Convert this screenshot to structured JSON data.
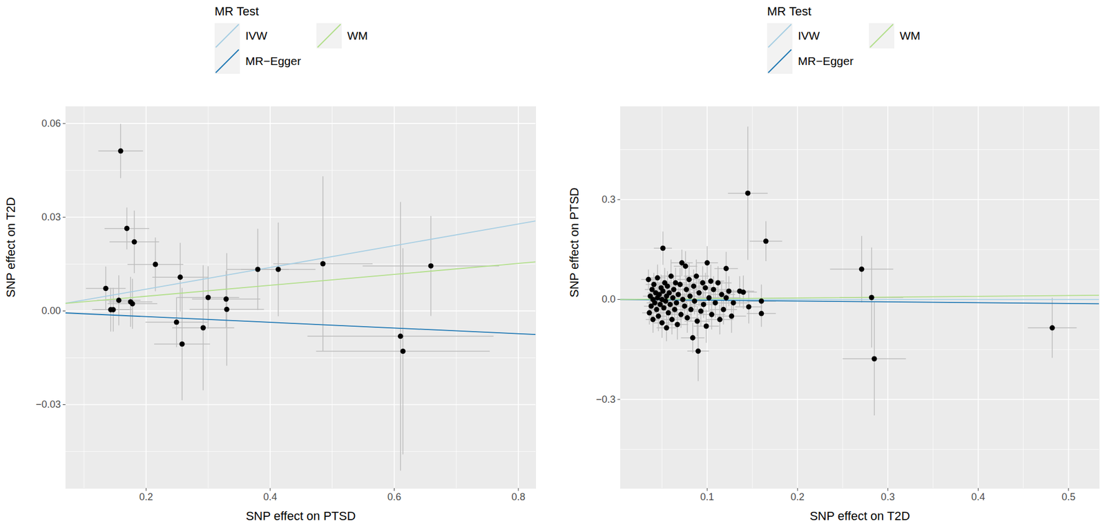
{
  "chart_data": [
    {
      "type": "scatter",
      "x_label": "SNP effect on PTSD",
      "y_label": "SNP effect on T2D",
      "legend_title": "MR Test",
      "legend": "top",
      "grid": true,
      "xlim": [
        0.0705,
        0.828
      ],
      "xticks": [
        0.2,
        0.4,
        0.6,
        0.8
      ],
      "ylim": [
        -0.0568,
        0.0654
      ],
      "yticks": [
        {
          "value": -0.03,
          "label": "−0.03"
        },
        {
          "value": 0,
          "label": "0.00"
        },
        {
          "value": 0.03,
          "label": "0.03"
        },
        {
          "value": 0.06,
          "label": "0.06"
        }
      ],
      "points": {
        "color": "black",
        "x": [
          0.159,
          0.169,
          0.181,
          0.215,
          0.135,
          0.143,
          0.147,
          0.156,
          0.175,
          0.178,
          0.255,
          0.249,
          0.258,
          0.292,
          0.3,
          0.329,
          0.33,
          0.38,
          0.413,
          0.485,
          0.61,
          0.614,
          0.659
        ],
        "y": [
          0.0512,
          0.0264,
          0.0221,
          0.0149,
          0.0072,
          0.0004,
          0.0004,
          0.0034,
          0.0029,
          0.0023,
          0.0108,
          -0.0036,
          -0.0106,
          -0.0054,
          0.0043,
          0.0038,
          0.0005,
          0.0133,
          0.0133,
          0.0151,
          -0.0081,
          -0.0129,
          0.0144
        ],
        "x_err": [
          0.036,
          0.036,
          0.04,
          0.045,
          0.032,
          0.03,
          0.03,
          0.035,
          0.035,
          0.04,
          0.045,
          0.05,
          0.045,
          0.05,
          0.05,
          0.055,
          0.06,
          0.05,
          0.06,
          0.08,
          0.15,
          0.14,
          0.11
        ],
        "y_err": [
          0.0087,
          0.0067,
          0.01,
          0.0086,
          0.007,
          0.007,
          0.007,
          0.008,
          0.008,
          0.008,
          0.011,
          0.008,
          0.018,
          0.02,
          0.01,
          0.009,
          0.018,
          0.013,
          0.015,
          0.028,
          0.043,
          0.033,
          0.016
        ]
      },
      "series": [
        {
          "name": "IVW",
          "color": "#a6cee3",
          "type": "line",
          "intercept": 0,
          "slope": 0.0348
        },
        {
          "name": "MR−Egger",
          "color": "#1f78b4",
          "type": "line",
          "intercept": 0,
          "slope": -0.0091
        },
        {
          "name": "WM",
          "color": "#b2df8a",
          "type": "line",
          "intercept": 0.0012,
          "slope": 0.0175
        }
      ]
    },
    {
      "type": "scatter",
      "x_label": "SNP effect on T2D",
      "y_label": "SNP effect on PTSD",
      "legend_title": "MR Test",
      "legend": "top",
      "grid": true,
      "xlim": [
        0.004,
        0.534
      ],
      "xticks": [
        0.1,
        0.2,
        0.3,
        0.4,
        0.5
      ],
      "ylim": [
        -0.567,
        0.579
      ],
      "yticks": [
        {
          "value": -0.3,
          "label": "−0.3"
        },
        {
          "value": 0,
          "label": "0.0"
        },
        {
          "value": 0.3,
          "label": "0.3"
        }
      ],
      "points": {
        "color": "black",
        "x": [
          0.035,
          0.036,
          0.037,
          0.038,
          0.039,
          0.04,
          0.04,
          0.041,
          0.042,
          0.043,
          0.044,
          0.045,
          0.045,
          0.046,
          0.047,
          0.048,
          0.049,
          0.05,
          0.05,
          0.051,
          0.052,
          0.053,
          0.054,
          0.055,
          0.055,
          0.056,
          0.057,
          0.058,
          0.059,
          0.06,
          0.061,
          0.062,
          0.063,
          0.064,
          0.065,
          0.066,
          0.067,
          0.068,
          0.07,
          0.071,
          0.072,
          0.073,
          0.075,
          0.076,
          0.077,
          0.078,
          0.08,
          0.081,
          0.082,
          0.084,
          0.085,
          0.086,
          0.088,
          0.089,
          0.091,
          0.093,
          0.095,
          0.096,
          0.098,
          0.099,
          0.102,
          0.104,
          0.105,
          0.107,
          0.109,
          0.112,
          0.114,
          0.116,
          0.118,
          0.121,
          0.124,
          0.127,
          0.129,
          0.136,
          0.051,
          0.1,
          0.121,
          0.09,
          0.145,
          0.165,
          0.14,
          0.146,
          0.16,
          0.16,
          0.271,
          0.282,
          0.285,
          0.482
        ],
        "y": [
          0.06,
          -0.04,
          0.01,
          -0.02,
          0.03,
          0.0,
          -0.06,
          0.045,
          -0.01,
          0.02,
          -0.03,
          0.065,
          0.005,
          -0.05,
          0.015,
          -0.015,
          0.035,
          -0.07,
          0.0,
          0.025,
          -0.025,
          0.05,
          -0.005,
          -0.085,
          0.01,
          0.04,
          -0.04,
          0.02,
          -0.015,
          0.07,
          -0.06,
          0.005,
          0.03,
          -0.03,
          0.05,
          -0.01,
          -0.075,
          0.015,
          0.045,
          -0.045,
          0.11,
          0.0,
          -0.02,
          0.1,
          0.03,
          -0.055,
          0.06,
          0.01,
          -0.03,
          -0.115,
          0.04,
          -0.005,
          0.07,
          -0.065,
          0.02,
          -0.035,
          0.05,
          -0.015,
          0.035,
          -0.08,
          0.005,
          0.055,
          -0.045,
          0.03,
          -0.01,
          0.05,
          -0.06,
          0.015,
          -0.03,
          0.005,
          0.025,
          -0.05,
          -0.01,
          0.025,
          0.154,
          0.11,
          0.093,
          -0.155,
          0.319,
          0.175,
          0.022,
          -0.022,
          -0.005,
          -0.042,
          0.091,
          0.006,
          -0.178,
          -0.085
        ],
        "x_err": [
          0.008,
          0.008,
          0.008,
          0.008,
          0.008,
          0.008,
          0.008,
          0.009,
          0.009,
          0.009,
          0.009,
          0.009,
          0.009,
          0.009,
          0.009,
          0.01,
          0.01,
          0.01,
          0.01,
          0.01,
          0.01,
          0.01,
          0.01,
          0.011,
          0.011,
          0.011,
          0.011,
          0.011,
          0.011,
          0.011,
          0.011,
          0.011,
          0.012,
          0.012,
          0.012,
          0.012,
          0.012,
          0.012,
          0.012,
          0.012,
          0.012,
          0.012,
          0.013,
          0.013,
          0.013,
          0.013,
          0.013,
          0.013,
          0.013,
          0.013,
          0.013,
          0.013,
          0.014,
          0.014,
          0.014,
          0.014,
          0.014,
          0.014,
          0.014,
          0.014,
          0.014,
          0.015,
          0.015,
          0.015,
          0.015,
          0.015,
          0.015,
          0.015,
          0.015,
          0.016,
          0.016,
          0.016,
          0.016,
          0.016,
          0.01,
          0.012,
          0.013,
          0.012,
          0.022,
          0.018,
          0.015,
          0.015,
          0.016,
          0.016,
          0.035,
          0.035,
          0.035,
          0.027
        ],
        "y_err": [
          0.03,
          0.035,
          0.03,
          0.04,
          0.035,
          0.03,
          0.04,
          0.035,
          0.03,
          0.04,
          0.035,
          0.04,
          0.03,
          0.045,
          0.035,
          0.03,
          0.04,
          0.045,
          0.03,
          0.035,
          0.04,
          0.045,
          0.03,
          0.04,
          0.035,
          0.045,
          0.04,
          0.035,
          0.03,
          0.05,
          0.045,
          0.035,
          0.04,
          0.035,
          0.045,
          0.03,
          0.045,
          0.035,
          0.05,
          0.04,
          0.04,
          0.035,
          0.04,
          0.045,
          0.04,
          0.045,
          0.05,
          0.04,
          0.035,
          0.045,
          0.05,
          0.04,
          0.05,
          0.045,
          0.04,
          0.045,
          0.05,
          0.04,
          0.045,
          0.05,
          0.04,
          0.05,
          0.045,
          0.04,
          0.045,
          0.05,
          0.045,
          0.04,
          0.045,
          0.04,
          0.045,
          0.05,
          0.04,
          0.045,
          0.05,
          0.05,
          0.05,
          0.09,
          0.2,
          0.06,
          0.05,
          0.05,
          0.05,
          0.04,
          0.1,
          0.15,
          0.17,
          0.09
        ]
      },
      "series": [
        {
          "name": "IVW",
          "color": "#a6cee3",
          "type": "line",
          "intercept": 0,
          "slope": 0
        },
        {
          "name": "MR−Egger",
          "color": "#1f78b4",
          "type": "line",
          "intercept": 0,
          "slope": -0.024
        },
        {
          "name": "WM",
          "color": "#b2df8a",
          "type": "line",
          "intercept": 0,
          "slope": 0.024
        }
      ]
    }
  ]
}
